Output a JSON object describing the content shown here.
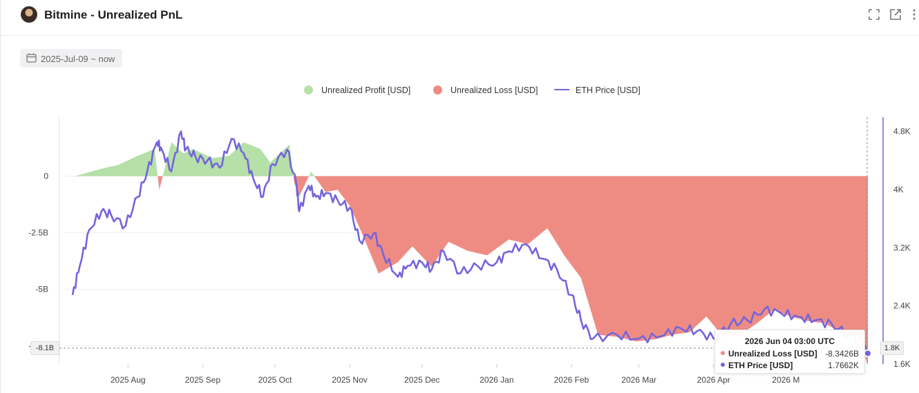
{
  "header": {
    "title": "Bitmine - Unrealized PnL",
    "icons": [
      "fullscreen-icon",
      "external-link-icon",
      "more-vertical-icon"
    ]
  },
  "filter": {
    "date_range": "2025-Jul-09 ~ now"
  },
  "colors": {
    "profit": "#b5e0a8",
    "loss": "#ee8c84",
    "eth": "#7464dc",
    "grid": "#eeeeee"
  },
  "chart_data": {
    "type": "area",
    "legend": {
      "position": "top",
      "items": [
        "Unrealized Profit [USD]",
        "Unrealized Loss [USD]",
        "ETH Price [USD]"
      ]
    },
    "x_tick_labels": [
      "2025 Aug",
      "2025 Sep",
      "2025 Oct",
      "2025 Nov",
      "2025 Dec",
      "2026 Jan",
      "2026 Feb",
      "2026 Mar",
      "2026 Apr",
      "2026 M"
    ],
    "x_ticks": [
      "2025-08-01",
      "2025-09-01",
      "2025-10-01",
      "2025-11-01",
      "2025-12-01",
      "2026-01-01",
      "2026-02-01",
      "2026-03-01",
      "2026-04-01",
      "2026-05-01"
    ],
    "x_range": [
      "2025-07-09",
      "2026-06-04"
    ],
    "left_axis": {
      "label": "",
      "ticks": [
        0,
        -2500000000,
        -5000000000,
        -7500000000
      ],
      "tick_labels": [
        "0",
        "-2.5B",
        "-5B",
        "-7.5B"
      ],
      "range": [
        -8300000000,
        2300000000
      ],
      "crosshair_label": "-8.1B"
    },
    "right_axis": {
      "label": "",
      "ticks": [
        1600,
        2400,
        3200,
        4000,
        4800
      ],
      "tick_labels": [
        "1.6K",
        "2.4K",
        "3.2K",
        "4K",
        "4.8K"
      ],
      "range": [
        1600,
        4900
      ],
      "crosshair_label": "1.8K"
    },
    "grid": true,
    "pnl_series": {
      "name_profit": "Unrealized Profit [USD]",
      "name_loss": "Unrealized Loss [USD]",
      "x": [
        "2025-07-10",
        "2025-07-20",
        "2025-07-28",
        "2025-08-05",
        "2025-08-12",
        "2025-08-14",
        "2025-08-19",
        "2025-08-24",
        "2025-08-28",
        "2025-09-05",
        "2025-09-12",
        "2025-09-18",
        "2025-09-25",
        "2025-09-29",
        "2025-10-03",
        "2025-10-07",
        "2025-10-09",
        "2025-10-11",
        "2025-10-16",
        "2025-10-22",
        "2025-10-27",
        "2025-11-01",
        "2025-11-06",
        "2025-11-13",
        "2025-11-21",
        "2025-11-27",
        "2025-12-05",
        "2025-12-12",
        "2025-12-20",
        "2025-12-28",
        "2026-01-06",
        "2026-01-14",
        "2026-01-22",
        "2026-01-29",
        "2026-02-05",
        "2026-02-12",
        "2026-02-20",
        "2026-02-28",
        "2026-03-08",
        "2026-03-15",
        "2026-03-22",
        "2026-03-29",
        "2026-04-05",
        "2026-04-12",
        "2026-04-19",
        "2026-04-26",
        "2026-05-03",
        "2026-05-10",
        "2026-05-17",
        "2026-05-24",
        "2026-05-31",
        "2026-06-04"
      ],
      "values": [
        0.0,
        0.3,
        0.5,
        0.9,
        1.2,
        -0.6,
        1.5,
        1.0,
        1.2,
        0.8,
        0.9,
        1.5,
        1.2,
        0.6,
        1.0,
        1.4,
        -0.3,
        -0.9,
        0.2,
        -0.7,
        -0.6,
        -1.3,
        -2.5,
        -4.3,
        -3.8,
        -3.1,
        -4.0,
        -2.9,
        -3.3,
        -3.5,
        -2.8,
        -3.0,
        -2.3,
        -3.5,
        -4.5,
        -7.0,
        -7.1,
        -7.3,
        -7.2,
        -7.0,
        -6.9,
        -6.2,
        -7.1,
        -7.0,
        -6.5,
        -5.9,
        -6.2,
        -6.4,
        -6.5,
        -6.9,
        -7.1,
        -8.3426
      ]
    },
    "eth_series": {
      "name": "ETH Price [USD]",
      "x": [
        "2025-07-09",
        "2025-07-12",
        "2025-07-16",
        "2025-07-21",
        "2025-07-25",
        "2025-07-31",
        "2025-08-05",
        "2025-08-09",
        "2025-08-13",
        "2025-08-15",
        "2025-08-19",
        "2025-08-23",
        "2025-08-25",
        "2025-08-29",
        "2025-09-03",
        "2025-09-08",
        "2025-09-13",
        "2025-09-18",
        "2025-09-22",
        "2025-09-26",
        "2025-09-30",
        "2025-10-06",
        "2025-10-10",
        "2025-10-11",
        "2025-10-15",
        "2025-10-18",
        "2025-10-22",
        "2025-10-27",
        "2025-11-01",
        "2025-11-05",
        "2025-11-11",
        "2025-11-15",
        "2025-11-21",
        "2025-11-25",
        "2025-12-01",
        "2025-12-05",
        "2025-12-10",
        "2025-12-17",
        "2025-12-24",
        "2026-01-01",
        "2026-01-06",
        "2026-01-13",
        "2026-01-20",
        "2026-01-26",
        "2026-02-01",
        "2026-02-05",
        "2026-02-10",
        "2026-02-20",
        "2026-03-01",
        "2026-03-10",
        "2026-03-18",
        "2026-03-25",
        "2026-04-01",
        "2026-04-08",
        "2026-04-15",
        "2026-04-22",
        "2026-04-29",
        "2026-05-06",
        "2026-05-13",
        "2026-05-20",
        "2026-05-27",
        "2026-06-04"
      ],
      "values": [
        2550,
        2950,
        3450,
        3700,
        3650,
        3500,
        3900,
        4250,
        4650,
        4550,
        4250,
        4800,
        4550,
        4450,
        4400,
        4300,
        4700,
        4500,
        4150,
        3900,
        4350,
        4550,
        4050,
        3700,
        4050,
        3900,
        3950,
        3850,
        3750,
        3300,
        3400,
        3100,
        2800,
        2950,
        3000,
        2900,
        3150,
        2850,
        2950,
        3000,
        3150,
        3250,
        3050,
        2900,
        2550,
        2200,
        1950,
        2000,
        1950,
        1980,
        2100,
        2050,
        1950,
        2150,
        2200,
        2350,
        2300,
        2250,
        2200,
        2150,
        2000,
        1766.2
      ]
    },
    "tooltip": {
      "title": "2026 Jun 04 03:00 UTC",
      "rows": [
        {
          "label": "Unrealized Loss [USD]",
          "value": "-8.3426B"
        },
        {
          "label": "ETH Price [USD]",
          "value": "1.7662K"
        }
      ]
    }
  }
}
